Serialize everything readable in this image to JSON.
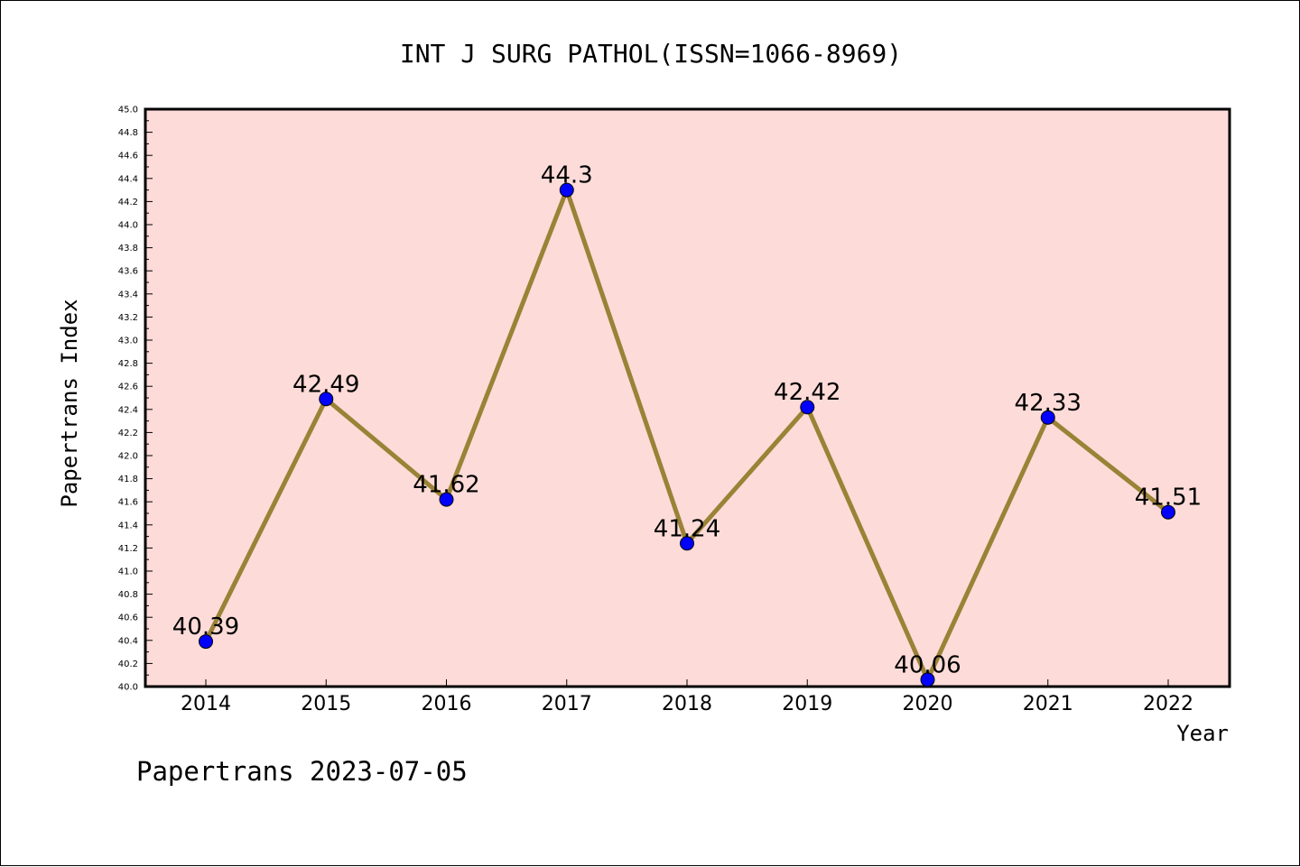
{
  "chart_data": {
    "type": "line",
    "title": "INT J SURG PATHOL(ISSN=1066-8969)",
    "xlabel": "Year",
    "ylabel": "Papertrans Index",
    "x": [
      "2014",
      "2015",
      "2016",
      "2017",
      "2018",
      "2019",
      "2020",
      "2021",
      "2022"
    ],
    "series": [
      {
        "values": [
          40.39,
          42.49,
          41.62,
          44.3,
          41.24,
          42.42,
          40.06,
          42.33,
          41.51
        ],
        "data_labels": [
          "40.39",
          "42.49",
          "41.62",
          "44.3",
          "41.24",
          "42.42",
          "40.06",
          "42.33",
          "41.51"
        ]
      }
    ],
    "ylim": [
      40.0,
      45.0
    ],
    "yticks": [
      "40.0",
      "40.2",
      "40.4",
      "40.6",
      "40.8",
      "41.0",
      "41.2",
      "41.4",
      "41.6",
      "41.8",
      "42.0",
      "42.2",
      "42.4",
      "42.6",
      "42.8",
      "43.0",
      "43.2",
      "43.4",
      "43.6",
      "43.8",
      "44.0",
      "44.2",
      "44.4",
      "44.6",
      "44.8",
      "45.0"
    ],
    "grid": false,
    "legend": "none",
    "colors": {
      "plot_background": "#fddbd8",
      "line": "#9a8236",
      "marker": "#0000ff"
    }
  },
  "footer": "Papertrans 2023-07-05"
}
